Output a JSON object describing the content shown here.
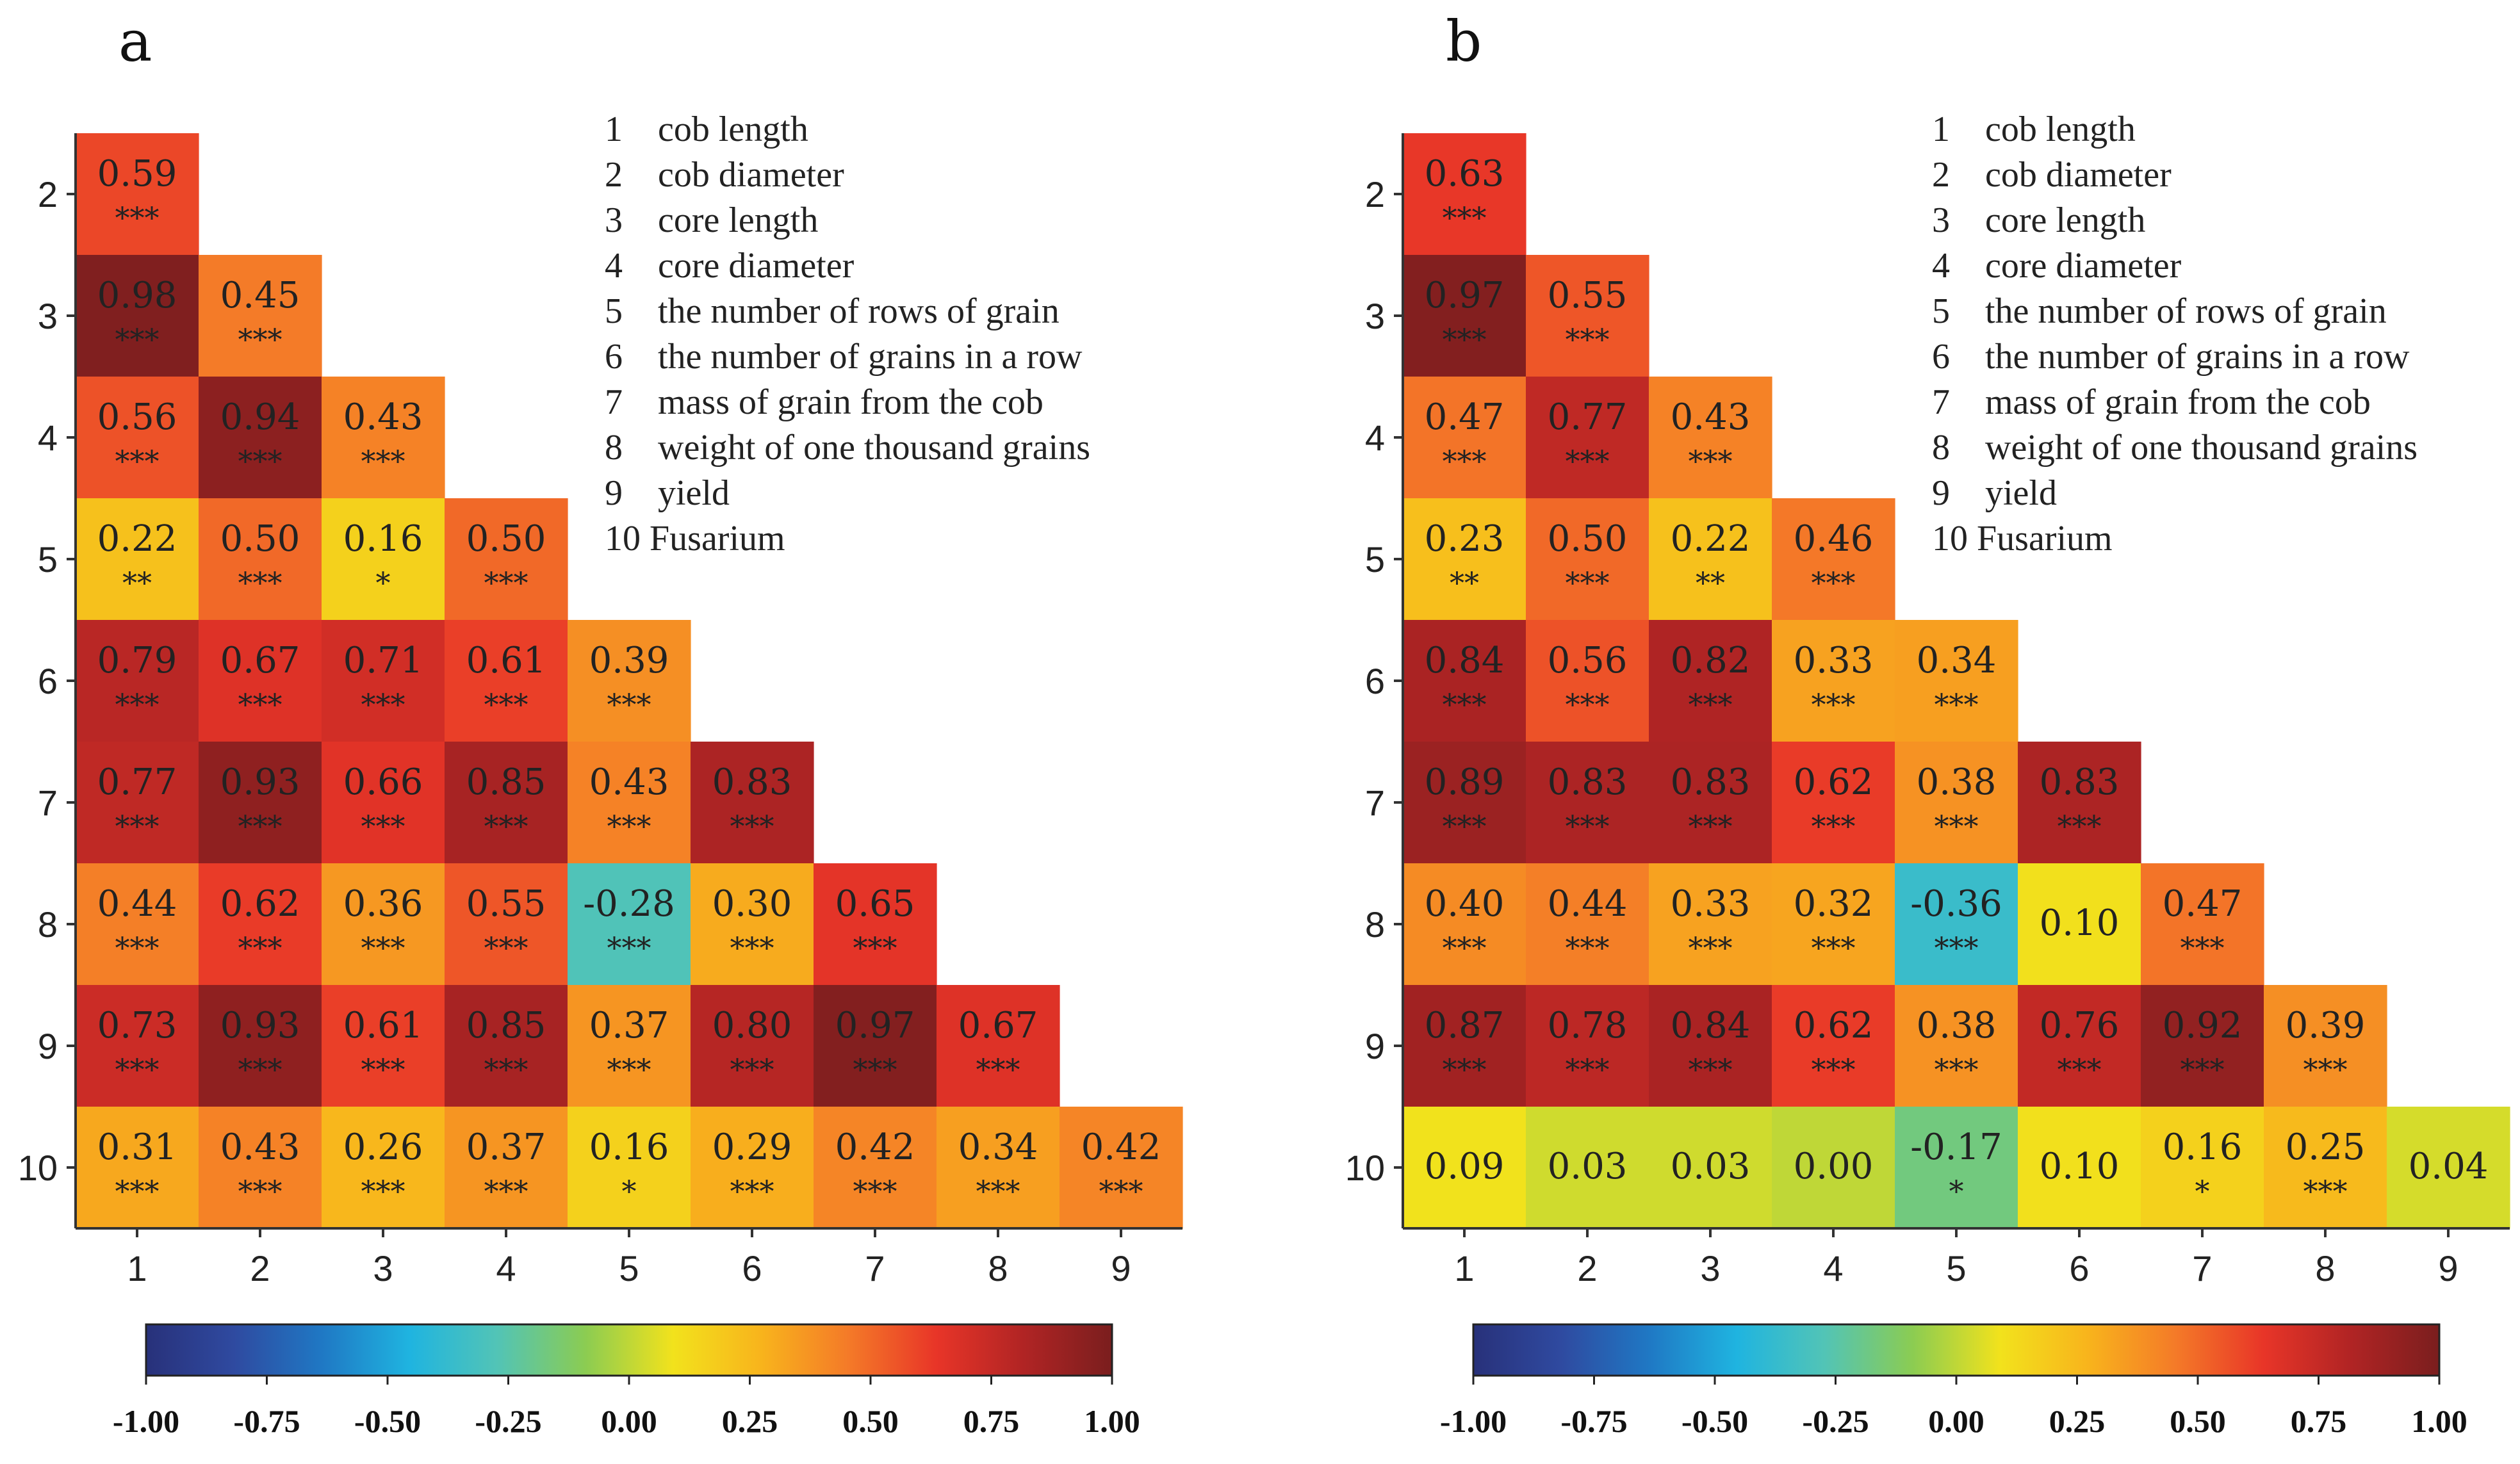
{
  "figure": {
    "legend_items": [
      {
        "num": "1",
        "text": "cob length"
      },
      {
        "num": "2",
        "text": "cob diameter"
      },
      {
        "num": "3",
        "text": "core length"
      },
      {
        "num": "4",
        "text": "core diameter"
      },
      {
        "num": "5",
        "text": "the number of rows of grain"
      },
      {
        "num": "6",
        "text": "the number of grains in a row"
      },
      {
        "num": "7",
        "text": "mass of grain from the cob"
      },
      {
        "num": "8",
        "text": "weight of one thousand grains"
      },
      {
        "num": "9",
        "text": "yield"
      },
      {
        "num": "10",
        "text": "Fusarium"
      }
    ],
    "colorbar_stops": [
      "#28317a",
      "#2f4aa0",
      "#1f78c4",
      "#1fb4e0",
      "#52c4b6",
      "#8bcc52",
      "#f2e21c",
      "#f8b41c",
      "#f47a28",
      "#e83528",
      "#b02424",
      "#7a1e1e"
    ]
  },
  "chart_data": [
    {
      "type": "heatmap",
      "panel_label": "a",
      "row_labels": [
        "2",
        "3",
        "4",
        "5",
        "6",
        "7",
        "8",
        "9",
        "10"
      ],
      "col_labels": [
        "1",
        "2",
        "3",
        "4",
        "5",
        "6",
        "7",
        "8",
        "9"
      ],
      "colorbar": {
        "range": [
          -1.0,
          1.0
        ],
        "tick_labels": [
          "-1.00",
          "-0.75",
          "-0.50",
          "-0.25",
          "0.00",
          "0.25",
          "0.50",
          "0.75",
          "1.00"
        ]
      },
      "values": [
        [
          0.59
        ],
        [
          0.98,
          0.45
        ],
        [
          0.56,
          0.94,
          0.43
        ],
        [
          0.22,
          0.5,
          0.16,
          0.5
        ],
        [
          0.79,
          0.67,
          0.71,
          0.61,
          0.39
        ],
        [
          0.77,
          0.93,
          0.66,
          0.85,
          0.43,
          0.83
        ],
        [
          0.44,
          0.62,
          0.36,
          0.55,
          -0.28,
          0.3,
          0.65
        ],
        [
          0.73,
          0.93,
          0.61,
          0.85,
          0.37,
          0.8,
          0.97,
          0.67
        ],
        [
          0.31,
          0.43,
          0.26,
          0.37,
          0.16,
          0.29,
          0.42,
          0.34,
          0.42
        ]
      ],
      "value_labels": [
        [
          "0.59"
        ],
        [
          "0.98",
          "0.45"
        ],
        [
          "0.56",
          "0.94",
          "0.43"
        ],
        [
          "0.22",
          "0.50",
          "0.16",
          "0.50"
        ],
        [
          "0.79",
          "0.67",
          "0.71",
          "0.61",
          "0.39"
        ],
        [
          "0.77",
          "0.93",
          "0.66",
          "0.85",
          "0.43",
          "0.83"
        ],
        [
          "0.44",
          "0.62",
          "0.36",
          "0.55",
          "-0.28",
          "0.30",
          "0.65"
        ],
        [
          "0.73",
          "0.93",
          "0.61",
          "0.85",
          "0.37",
          "0.80",
          "0.97",
          "0.67"
        ],
        [
          "0.31",
          "0.43",
          "0.26",
          "0.37",
          "0.16",
          "0.29",
          "0.42",
          "0.34",
          "0.42"
        ]
      ],
      "significance": [
        [
          "***"
        ],
        [
          "***",
          "***"
        ],
        [
          "***",
          "***",
          "***"
        ],
        [
          "**",
          "***",
          "*",
          "***"
        ],
        [
          "***",
          "***",
          "***",
          "***",
          "***"
        ],
        [
          "***",
          "***",
          "***",
          "***",
          "***",
          "***"
        ],
        [
          "***",
          "***",
          "***",
          "***",
          "***",
          "***",
          "***"
        ],
        [
          "***",
          "***",
          "***",
          "***",
          "***",
          "***",
          "***",
          "***"
        ],
        [
          "***",
          "***",
          "***",
          "***",
          "*",
          "***",
          "***",
          "***",
          "***"
        ]
      ]
    },
    {
      "type": "heatmap",
      "panel_label": "b",
      "row_labels": [
        "2",
        "3",
        "4",
        "5",
        "6",
        "7",
        "8",
        "9",
        "10"
      ],
      "col_labels": [
        "1",
        "2",
        "3",
        "4",
        "5",
        "6",
        "7",
        "8",
        "9"
      ],
      "colorbar": {
        "range": [
          -1.0,
          1.0
        ],
        "tick_labels": [
          "-1.00",
          "-0.75",
          "-0.50",
          "-0.25",
          "0.00",
          "0.25",
          "0.50",
          "0.75",
          "1.00"
        ]
      },
      "values": [
        [
          0.63
        ],
        [
          0.97,
          0.55
        ],
        [
          0.47,
          0.77,
          0.43
        ],
        [
          0.23,
          0.5,
          0.22,
          0.46
        ],
        [
          0.84,
          0.56,
          0.82,
          0.33,
          0.34
        ],
        [
          0.89,
          0.83,
          0.83,
          0.62,
          0.38,
          0.83
        ],
        [
          0.4,
          0.44,
          0.33,
          0.32,
          -0.36,
          0.1,
          0.47
        ],
        [
          0.87,
          0.78,
          0.84,
          0.62,
          0.38,
          0.76,
          0.92,
          0.39
        ],
        [
          0.09,
          0.03,
          0.03,
          0.0,
          -0.17,
          0.1,
          0.16,
          0.25,
          0.04
        ]
      ],
      "value_labels": [
        [
          "0.63"
        ],
        [
          "0.97",
          "0.55"
        ],
        [
          "0.47",
          "0.77",
          "0.43"
        ],
        [
          "0.23",
          "0.50",
          "0.22",
          "0.46"
        ],
        [
          "0.84",
          "0.56",
          "0.82",
          "0.33",
          "0.34"
        ],
        [
          "0.89",
          "0.83",
          "0.83",
          "0.62",
          "0.38",
          "0.83"
        ],
        [
          "0.40",
          "0.44",
          "0.33",
          "0.32",
          "-0.36",
          "0.10",
          "0.47"
        ],
        [
          "0.87",
          "0.78",
          "0.84",
          "0.62",
          "0.38",
          "0.76",
          "0.92",
          "0.39"
        ],
        [
          "0.09",
          "0.03",
          "0.03",
          "0.00",
          "-0.17",
          "0.10",
          "0.16",
          "0.25",
          "0.04"
        ]
      ],
      "significance": [
        [
          "***"
        ],
        [
          "***",
          "***"
        ],
        [
          "***",
          "***",
          "***"
        ],
        [
          "**",
          "***",
          "**",
          "***"
        ],
        [
          "***",
          "***",
          "***",
          "***",
          "***"
        ],
        [
          "***",
          "***",
          "***",
          "***",
          "***",
          "***"
        ],
        [
          "***",
          "***",
          "***",
          "***",
          "***",
          "",
          "***"
        ],
        [
          "***",
          "***",
          "***",
          "***",
          "***",
          "***",
          "***",
          "***"
        ],
        [
          "",
          "",
          "",
          "",
          "*",
          "",
          "*",
          "***",
          ""
        ]
      ]
    }
  ]
}
